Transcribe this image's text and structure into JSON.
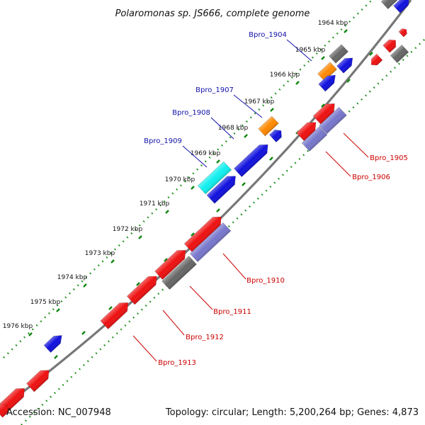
{
  "title": "Polaromonas sp. JS666, complete genome",
  "accession": "Accession: NC_007948",
  "summary": "Topology: circular; Length: 5,200,264 bp; Genes: 4,873",
  "colors": {
    "red": "#ee1111",
    "blue": "#1111dd",
    "gray": "#666666",
    "orange": "#ff8800",
    "cyan": "#11eeee",
    "purple": "#7777cc",
    "tick": "#118811",
    "backbone": "#777777",
    "label_upper": "#1111aa",
    "label_lower": "#cc0000"
  },
  "ticks": [
    "1964 kbp",
    "1965 kbp",
    "1966 kbp",
    "1967 kbp",
    "1968 kbp",
    "1969 kbp",
    "1970 kbp",
    "1971 kbp",
    "1972 kbp",
    "1973 kbp",
    "1974 kbp",
    "1975 kbp",
    "1976 kbp"
  ],
  "gene_labels": [
    "Bpro_1904",
    "Bpro_1907",
    "Bpro_1908",
    "Bpro_1909",
    "Bpro_1905",
    "Bpro_1906",
    "Bpro_1910",
    "Bpro_1911",
    "Bpro_1912",
    "Bpro_1913"
  ]
}
